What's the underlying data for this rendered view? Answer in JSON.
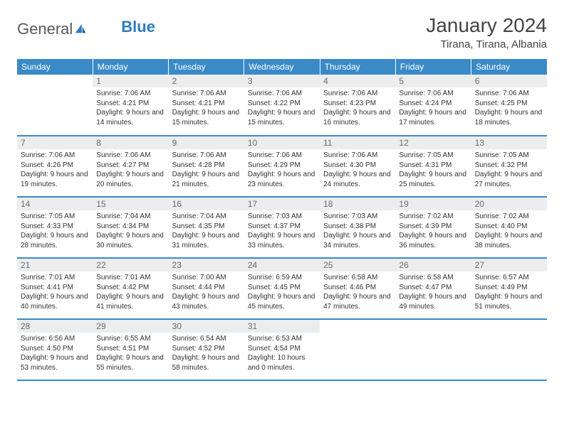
{
  "brand": {
    "part1": "General",
    "part2": "Blue"
  },
  "title": "January 2024",
  "location": "Tirana, Tirana, Albania",
  "colors": {
    "header_bg": "#3a8ac7",
    "header_text": "#ffffff",
    "daynum_bg": "#ecedee",
    "daynum_text": "#6b6b6b",
    "row_border": "#3a8ac7",
    "logo_gray": "#5a5a5a",
    "logo_blue": "#2f7bbf"
  },
  "day_headers": [
    "Sunday",
    "Monday",
    "Tuesday",
    "Wednesday",
    "Thursday",
    "Friday",
    "Saturday"
  ],
  "weeks": [
    [
      {
        "n": "",
        "sr": "",
        "ss": "",
        "dl": ""
      },
      {
        "n": "1",
        "sr": "Sunrise: 7:06 AM",
        "ss": "Sunset: 4:21 PM",
        "dl": "Daylight: 9 hours and 14 minutes."
      },
      {
        "n": "2",
        "sr": "Sunrise: 7:06 AM",
        "ss": "Sunset: 4:21 PM",
        "dl": "Daylight: 9 hours and 15 minutes."
      },
      {
        "n": "3",
        "sr": "Sunrise: 7:06 AM",
        "ss": "Sunset: 4:22 PM",
        "dl": "Daylight: 9 hours and 15 minutes."
      },
      {
        "n": "4",
        "sr": "Sunrise: 7:06 AM",
        "ss": "Sunset: 4:23 PM",
        "dl": "Daylight: 9 hours and 16 minutes."
      },
      {
        "n": "5",
        "sr": "Sunrise: 7:06 AM",
        "ss": "Sunset: 4:24 PM",
        "dl": "Daylight: 9 hours and 17 minutes."
      },
      {
        "n": "6",
        "sr": "Sunrise: 7:06 AM",
        "ss": "Sunset: 4:25 PM",
        "dl": "Daylight: 9 hours and 18 minutes."
      }
    ],
    [
      {
        "n": "7",
        "sr": "Sunrise: 7:06 AM",
        "ss": "Sunset: 4:26 PM",
        "dl": "Daylight: 9 hours and 19 minutes."
      },
      {
        "n": "8",
        "sr": "Sunrise: 7:06 AM",
        "ss": "Sunset: 4:27 PM",
        "dl": "Daylight: 9 hours and 20 minutes."
      },
      {
        "n": "9",
        "sr": "Sunrise: 7:06 AM",
        "ss": "Sunset: 4:28 PM",
        "dl": "Daylight: 9 hours and 21 minutes."
      },
      {
        "n": "10",
        "sr": "Sunrise: 7:06 AM",
        "ss": "Sunset: 4:29 PM",
        "dl": "Daylight: 9 hours and 23 minutes."
      },
      {
        "n": "11",
        "sr": "Sunrise: 7:06 AM",
        "ss": "Sunset: 4:30 PM",
        "dl": "Daylight: 9 hours and 24 minutes."
      },
      {
        "n": "12",
        "sr": "Sunrise: 7:05 AM",
        "ss": "Sunset: 4:31 PM",
        "dl": "Daylight: 9 hours and 25 minutes."
      },
      {
        "n": "13",
        "sr": "Sunrise: 7:05 AM",
        "ss": "Sunset: 4:32 PM",
        "dl": "Daylight: 9 hours and 27 minutes."
      }
    ],
    [
      {
        "n": "14",
        "sr": "Sunrise: 7:05 AM",
        "ss": "Sunset: 4:33 PM",
        "dl": "Daylight: 9 hours and 28 minutes."
      },
      {
        "n": "15",
        "sr": "Sunrise: 7:04 AM",
        "ss": "Sunset: 4:34 PM",
        "dl": "Daylight: 9 hours and 30 minutes."
      },
      {
        "n": "16",
        "sr": "Sunrise: 7:04 AM",
        "ss": "Sunset: 4:35 PM",
        "dl": "Daylight: 9 hours and 31 minutes."
      },
      {
        "n": "17",
        "sr": "Sunrise: 7:03 AM",
        "ss": "Sunset: 4:37 PM",
        "dl": "Daylight: 9 hours and 33 minutes."
      },
      {
        "n": "18",
        "sr": "Sunrise: 7:03 AM",
        "ss": "Sunset: 4:38 PM",
        "dl": "Daylight: 9 hours and 34 minutes."
      },
      {
        "n": "19",
        "sr": "Sunrise: 7:02 AM",
        "ss": "Sunset: 4:39 PM",
        "dl": "Daylight: 9 hours and 36 minutes."
      },
      {
        "n": "20",
        "sr": "Sunrise: 7:02 AM",
        "ss": "Sunset: 4:40 PM",
        "dl": "Daylight: 9 hours and 38 minutes."
      }
    ],
    [
      {
        "n": "21",
        "sr": "Sunrise: 7:01 AM",
        "ss": "Sunset: 4:41 PM",
        "dl": "Daylight: 9 hours and 40 minutes."
      },
      {
        "n": "22",
        "sr": "Sunrise: 7:01 AM",
        "ss": "Sunset: 4:42 PM",
        "dl": "Daylight: 9 hours and 41 minutes."
      },
      {
        "n": "23",
        "sr": "Sunrise: 7:00 AM",
        "ss": "Sunset: 4:44 PM",
        "dl": "Daylight: 9 hours and 43 minutes."
      },
      {
        "n": "24",
        "sr": "Sunrise: 6:59 AM",
        "ss": "Sunset: 4:45 PM",
        "dl": "Daylight: 9 hours and 45 minutes."
      },
      {
        "n": "25",
        "sr": "Sunrise: 6:58 AM",
        "ss": "Sunset: 4:46 PM",
        "dl": "Daylight: 9 hours and 47 minutes."
      },
      {
        "n": "26",
        "sr": "Sunrise: 6:58 AM",
        "ss": "Sunset: 4:47 PM",
        "dl": "Daylight: 9 hours and 49 minutes."
      },
      {
        "n": "27",
        "sr": "Sunrise: 6:57 AM",
        "ss": "Sunset: 4:49 PM",
        "dl": "Daylight: 9 hours and 51 minutes."
      }
    ],
    [
      {
        "n": "28",
        "sr": "Sunrise: 6:56 AM",
        "ss": "Sunset: 4:50 PM",
        "dl": "Daylight: 9 hours and 53 minutes."
      },
      {
        "n": "29",
        "sr": "Sunrise: 6:55 AM",
        "ss": "Sunset: 4:51 PM",
        "dl": "Daylight: 9 hours and 55 minutes."
      },
      {
        "n": "30",
        "sr": "Sunrise: 6:54 AM",
        "ss": "Sunset: 4:52 PM",
        "dl": "Daylight: 9 hours and 58 minutes."
      },
      {
        "n": "31",
        "sr": "Sunrise: 6:53 AM",
        "ss": "Sunset: 4:54 PM",
        "dl": "Daylight: 10 hours and 0 minutes."
      },
      {
        "n": "",
        "sr": "",
        "ss": "",
        "dl": ""
      },
      {
        "n": "",
        "sr": "",
        "ss": "",
        "dl": ""
      },
      {
        "n": "",
        "sr": "",
        "ss": "",
        "dl": ""
      }
    ]
  ]
}
